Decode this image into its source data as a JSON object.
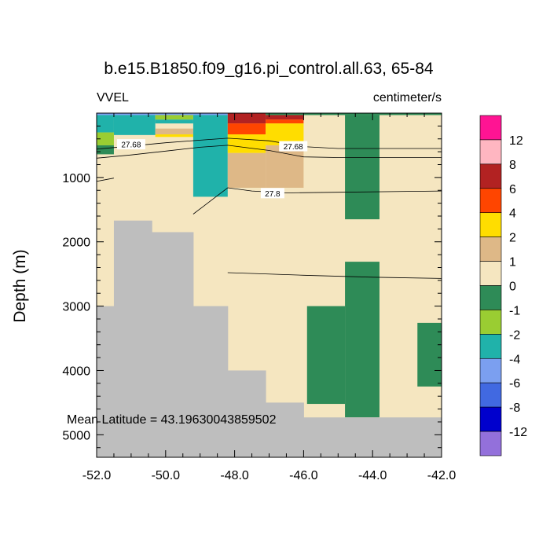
{
  "chart_data": {
    "type": "heatmap",
    "title": "b.e15.B1850.f09_g16.pi_control.all.63, 65-84",
    "left_label": "VVEL",
    "right_label": "centimeter/s",
    "xlabel": "",
    "ylabel": "Depth (m)",
    "xlim": [
      -52.0,
      -42.0
    ],
    "ylim_depth": [
      0,
      5350
    ],
    "plot_top_depth": 0,
    "x_ticks": [
      -52.0,
      -50.0,
      -48.0,
      -46.0,
      -44.0,
      -42.0
    ],
    "x_tick_labels": [
      "-52.0",
      "-50.0",
      "-48.0",
      "-46.0",
      "-44.0",
      "-42.0"
    ],
    "y_ticks": [
      1000,
      2000,
      3000,
      4000,
      5000
    ],
    "y_tick_labels": [
      "1000",
      "2000",
      "3000",
      "4000",
      "5000"
    ],
    "annotation": "Mean Latitude = 43.19630043859502",
    "colorbar": {
      "labels": [
        "12",
        "8",
        "6",
        "4",
        "2",
        "1",
        "0",
        "-1",
        "-2",
        "-4",
        "-6",
        "-8",
        "-12"
      ],
      "colors": [
        "#ff1493",
        "#ffb6c1",
        "#b22222",
        "#ff4500",
        "#ffdd00",
        "#deb887",
        "#f5e6c0",
        "#2e8b57",
        "#9acd32",
        "#20b2aa",
        "#7b9ff0",
        "#4169e1",
        "#0000cd",
        "#9370db"
      ]
    },
    "land_color": "#bebebe",
    "background_color": "#f5e6c0",
    "cells": [
      {
        "x0": -52,
        "x1": -51.5,
        "d0": 0,
        "d1": 30,
        "color": "#7b9ff0"
      },
      {
        "x0": -51.5,
        "x1": -50.3,
        "d0": 0,
        "d1": 30,
        "color": "#7b9ff0"
      },
      {
        "x0": -50.3,
        "x1": -49.2,
        "d0": 0,
        "d1": 30,
        "color": "#7b9ff0"
      },
      {
        "x0": -52,
        "x1": -51.5,
        "d0": 30,
        "d1": 300,
        "color": "#20b2aa"
      },
      {
        "x0": -51.5,
        "x1": -50.3,
        "d0": 30,
        "d1": 340,
        "color": "#20b2aa"
      },
      {
        "x0": -52,
        "x1": -51.5,
        "d0": 300,
        "d1": 500,
        "color": "#9acd32"
      },
      {
        "x0": -52,
        "x1": -51.5,
        "d0": 500,
        "d1": 640,
        "color": "#2e8b57"
      },
      {
        "x0": -50.3,
        "x1": -49.2,
        "d0": 30,
        "d1": 100,
        "color": "#9acd32"
      },
      {
        "x0": -50.3,
        "x1": -49.2,
        "d0": 100,
        "d1": 160,
        "color": "#20b2aa"
      },
      {
        "x0": -50.3,
        "x1": -49.2,
        "d0": 240,
        "d1": 330,
        "color": "#deb887"
      },
      {
        "x0": -50.3,
        "x1": -49.2,
        "d0": 330,
        "d1": 370,
        "color": "#ffdd00"
      },
      {
        "x0": -49.2,
        "x1": -48.2,
        "d0": 0,
        "d1": 30,
        "color": "#7b9ff0"
      },
      {
        "x0": -49.2,
        "x1": -48.2,
        "d0": 30,
        "d1": 1300,
        "color": "#20b2aa"
      },
      {
        "x0": -48.2,
        "x1": -47.1,
        "d0": 0,
        "d1": 160,
        "color": "#b22222"
      },
      {
        "x0": -48.2,
        "x1": -47.1,
        "d0": 160,
        "d1": 330,
        "color": "#ff4500"
      },
      {
        "x0": -48.2,
        "x1": -47.1,
        "d0": 330,
        "d1": 620,
        "color": "#ffdd00"
      },
      {
        "x0": -48.2,
        "x1": -47.1,
        "d0": 620,
        "d1": 1160,
        "color": "#deb887"
      },
      {
        "x0": -47.1,
        "x1": -46.0,
        "d0": 0,
        "d1": 30,
        "color": "#2e8b57"
      },
      {
        "x0": -47.1,
        "x1": -46.0,
        "d0": 30,
        "d1": 100,
        "color": "#b22222"
      },
      {
        "x0": -47.1,
        "x1": -46.0,
        "d0": 100,
        "d1": 160,
        "color": "#ff4500"
      },
      {
        "x0": -47.1,
        "x1": -46.0,
        "d0": 160,
        "d1": 500,
        "color": "#ffdd00"
      },
      {
        "x0": -47.1,
        "x1": -46.0,
        "d0": 500,
        "d1": 1160,
        "color": "#deb887"
      },
      {
        "x0": -46.0,
        "x1": -42.0,
        "d0": 0,
        "d1": 30,
        "color": "#2e8b57"
      },
      {
        "x0": -44.8,
        "x1": -43.8,
        "d0": 30,
        "d1": 1650,
        "color": "#2e8b57"
      },
      {
        "x0": -44.8,
        "x1": -43.8,
        "d0": 2310,
        "d1": 4730,
        "color": "#2e8b57"
      },
      {
        "x0": -45.9,
        "x1": -44.8,
        "d0": 3000,
        "d1": 4520,
        "color": "#2e8b57"
      },
      {
        "x0": -42.7,
        "x1": -42.0,
        "d0": 3260,
        "d1": 4250,
        "color": "#2e8b57"
      }
    ],
    "land": [
      {
        "x0": -52.0,
        "x1": -51.5,
        "d0": 3000,
        "d1": 5350
      },
      {
        "x0": -51.5,
        "x1": -50.4,
        "d0": 1670,
        "d1": 5350
      },
      {
        "x0": -50.4,
        "x1": -49.2,
        "d0": 1850,
        "d1": 5350
      },
      {
        "x0": -49.2,
        "x1": -48.2,
        "d0": 3000,
        "d1": 5350
      },
      {
        "x0": -48.2,
        "x1": -47.1,
        "d0": 4000,
        "d1": 5350
      },
      {
        "x0": -47.1,
        "x1": -46.0,
        "d0": 4500,
        "d1": 5350
      },
      {
        "x0": -46.0,
        "x1": -42.0,
        "d0": 4730,
        "d1": 5350
      }
    ],
    "contours": [
      {
        "label": "27.68",
        "label_x": -51.0,
        "label_d": 490,
        "points": [
          [
            -52,
            560
          ],
          [
            -51,
            510
          ],
          [
            -50,
            460
          ],
          [
            -49,
            420
          ],
          [
            -48.2,
            390
          ],
          [
            -47,
            430
          ],
          [
            -46,
            520
          ],
          [
            -45,
            550
          ],
          [
            -42,
            550
          ]
        ]
      },
      {
        "label": "27.68",
        "label_x": -46.3,
        "label_d": 520,
        "points": [
          [
            -52,
            700
          ],
          [
            -51,
            650
          ],
          [
            -50,
            590
          ],
          [
            -49,
            530
          ],
          [
            -48.2,
            500
          ],
          [
            -47,
            580
          ],
          [
            -46,
            680
          ],
          [
            -45,
            690
          ],
          [
            -42,
            690
          ]
        ]
      },
      {
        "label": "27.8",
        "label_x": -46.9,
        "label_d": 1250,
        "points": [
          [
            -49.2,
            1570
          ],
          [
            -48.2,
            1160
          ],
          [
            -47.5,
            1210
          ],
          [
            -46.5,
            1240
          ],
          [
            -45,
            1230
          ],
          [
            -42,
            1210
          ]
        ]
      },
      {
        "label": "",
        "label_x": 0,
        "label_d": 0,
        "points": [
          [
            -52,
            1060
          ],
          [
            -51.5,
            1010
          ]
        ]
      },
      {
        "label": "",
        "label_x": 0,
        "label_d": 0,
        "points": [
          [
            -48.2,
            2480
          ],
          [
            -46,
            2520
          ],
          [
            -44,
            2550
          ],
          [
            -42,
            2570
          ]
        ]
      }
    ]
  }
}
